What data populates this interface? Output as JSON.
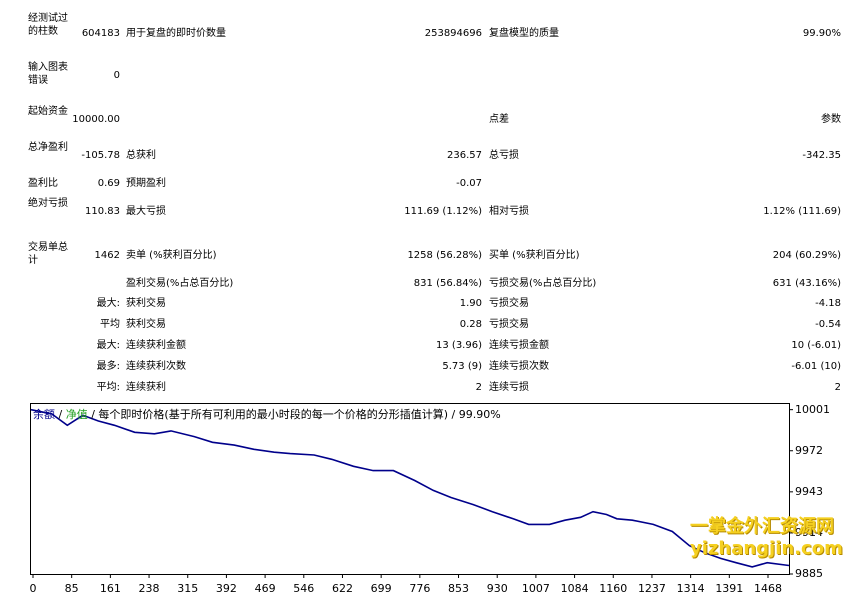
{
  "stats": {
    "bars_label": "经测试过的柱数",
    "bars_value": "604183",
    "ticks_label": "用于复盘的即时价数量",
    "ticks_value": "253894696",
    "quality_label": "复盘模型的质量",
    "quality_value": "99.90%",
    "errors_label": "输入图表错误",
    "errors_value": "0",
    "deposit_label": "起始资金",
    "deposit_value": "10000.00",
    "spread_label": "点差",
    "params_label": "参数",
    "net_label": "总净盈利",
    "net_value": "-105.78",
    "gross_profit_label": "总获利",
    "gross_profit_value": "236.57",
    "gross_loss_label": "总亏损",
    "gross_loss_value": "-342.35",
    "pf_label": "盈利比",
    "pf_value": "0.69",
    "expected_label": "预期盈利",
    "expected_value": "-0.07",
    "abs_dd_label": "绝对亏损",
    "abs_dd_value": "110.83",
    "max_dd_label": "最大亏损",
    "max_dd_value": "111.69 (1.12%)",
    "rel_dd_label": "相对亏损",
    "rel_dd_value": "1.12% (111.69)",
    "trades_label": "交易单总计",
    "trades_value": "1462",
    "short_label": "卖单 (%获利百分比)",
    "short_value": "1258 (56.28%)",
    "long_label": "买单 (%获利百分比)",
    "long_value": "204 (60.29%)",
    "profit_trades_label": "盈利交易(%占总百分比)",
    "profit_trades_value": "831 (56.84%)",
    "loss_trades_label": "亏损交易(%占总百分比)",
    "loss_trades_value": "631 (43.16%)",
    "largest_prefix": "最大:",
    "largest_profit_label": "获利交易",
    "largest_profit_value": "1.90",
    "largest_loss_label": "亏损交易",
    "largest_loss_value": "-4.18",
    "avg_prefix": "平均",
    "avg_profit_label": "获利交易",
    "avg_profit_value": "0.28",
    "avg_loss_label": "亏损交易",
    "avg_loss_value": "-0.54",
    "max_prefix": "最大:",
    "max_cons_win_label": "连续获利金额",
    "max_cons_win_value": "13 (3.96)",
    "max_cons_loss_label": "连续亏损金额",
    "max_cons_loss_value": "10 (-6.01)",
    "most_prefix": "最多:",
    "most_cons_profit_label": "连续获利次数",
    "most_cons_profit_value": "5.73 (9)",
    "most_cons_loss_label": "连续亏损次数",
    "most_cons_loss_value": "-6.01 (10)",
    "avg2_prefix": "平均:",
    "avg_cons_win_label": "连续获利",
    "avg_cons_win_value": "2",
    "avg_cons_loss_label": "连续亏损",
    "avg_cons_loss_value": "2"
  },
  "legend": {
    "balance": "余额",
    "sep1": "/",
    "equity": "净值",
    "rest": "/ 每个即时价格(基于所有可利用的最小时段的每一个价格的分形插值计算) / 99.90%"
  },
  "watermark": {
    "line1": "一掌金外汇资源网",
    "line2": "yizhangjin.com"
  },
  "colors": {
    "balance": "#00008b",
    "equity": "#22a022",
    "watermark": "#f5d020"
  },
  "chart_data": {
    "type": "line",
    "ylim": [
      9885,
      10005
    ],
    "xlim": [
      0,
      1462
    ],
    "ytick_labels": [
      "10001",
      "9972",
      "9943",
      "9914",
      "9885"
    ],
    "ytick_values": [
      10001,
      9972,
      9943,
      9914,
      9885
    ],
    "xtick_labels": [
      "0",
      "85",
      "161",
      "238",
      "315",
      "392",
      "469",
      "546",
      "622",
      "699",
      "776",
      "853",
      "930",
      "1007",
      "1084",
      "1160",
      "1237",
      "1314",
      "1391",
      "1468"
    ],
    "series": [
      {
        "values": [
          [
            0,
            10001
          ],
          [
            40,
            9998
          ],
          [
            70,
            9990
          ],
          [
            100,
            9997
          ],
          [
            130,
            9993
          ],
          [
            161,
            9990
          ],
          [
            200,
            9985
          ],
          [
            238,
            9984
          ],
          [
            270,
            9986
          ],
          [
            315,
            9982
          ],
          [
            350,
            9978
          ],
          [
            392,
            9976
          ],
          [
            430,
            9973
          ],
          [
            469,
            9971
          ],
          [
            500,
            9970
          ],
          [
            546,
            9969
          ],
          [
            580,
            9966
          ],
          [
            622,
            9961
          ],
          [
            660,
            9958
          ],
          [
            699,
            9958
          ],
          [
            740,
            9951
          ],
          [
            776,
            9944
          ],
          [
            810,
            9939
          ],
          [
            853,
            9934
          ],
          [
            890,
            9929
          ],
          [
            930,
            9924
          ],
          [
            960,
            9920
          ],
          [
            1000,
            9920
          ],
          [
            1030,
            9923
          ],
          [
            1060,
            9925
          ],
          [
            1084,
            9929
          ],
          [
            1110,
            9927
          ],
          [
            1130,
            9924
          ],
          [
            1160,
            9923
          ],
          [
            1200,
            9920
          ],
          [
            1237,
            9915
          ],
          [
            1270,
            9905
          ],
          [
            1300,
            9900
          ],
          [
            1330,
            9896
          ],
          [
            1360,
            9893
          ],
          [
            1391,
            9890
          ],
          [
            1420,
            9893
          ],
          [
            1462,
            9891
          ]
        ]
      }
    ]
  }
}
